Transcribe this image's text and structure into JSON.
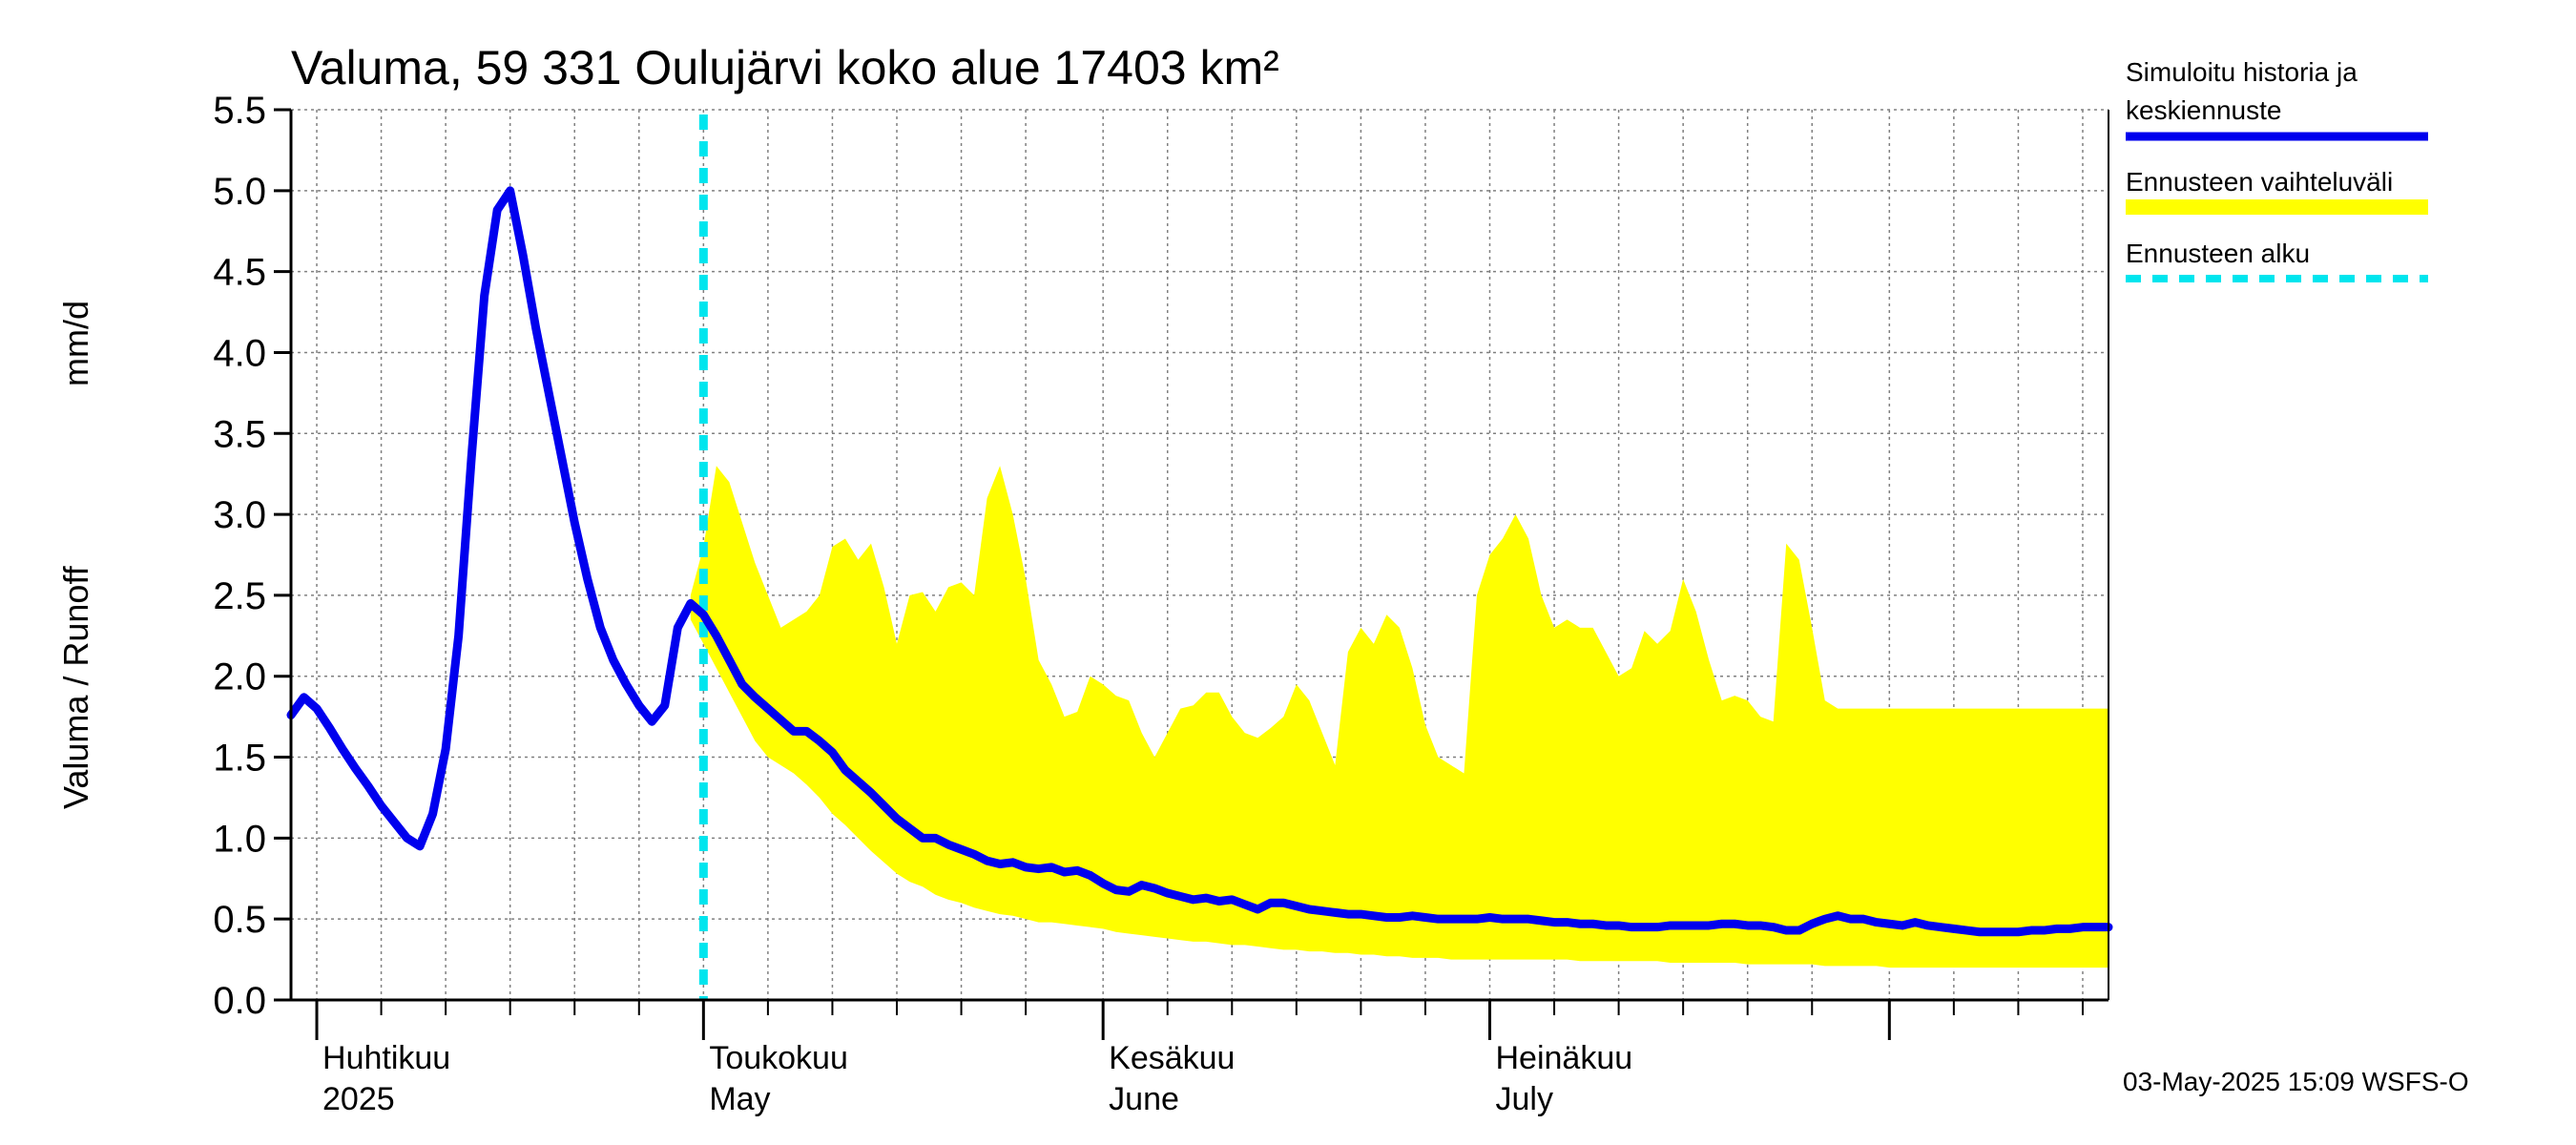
{
  "chart_data": {
    "type": "line",
    "title": "Valuma, 59 331 Oulujärvi koko alue 17403 km²",
    "ylabel_left": "Valuma / Runoff",
    "ylabel_unit": "mm/d",
    "ylim": [
      0.0,
      5.5
    ],
    "yticks": [
      "0.0",
      "0.5",
      "1.0",
      "1.5",
      "2.0",
      "2.5",
      "3.0",
      "3.5",
      "4.0",
      "4.5",
      "5.0",
      "5.5"
    ],
    "x_range_days": [
      0,
      141
    ],
    "month_labels": [
      {
        "day": 2,
        "fi": "Huhtikuu",
        "en": "2025"
      },
      {
        "day": 32,
        "fi": "Toukokuu",
        "en": "May"
      },
      {
        "day": 63,
        "fi": "Kesäkuu",
        "en": "June"
      },
      {
        "day": 93,
        "fi": "Heinäkuu",
        "en": "July"
      }
    ],
    "major_ticks_days": [
      2,
      32,
      63,
      93,
      124
    ],
    "minor_ticks_days": [
      7,
      12,
      17,
      22,
      27,
      37,
      42,
      47,
      52,
      57,
      68,
      73,
      78,
      83,
      88,
      98,
      103,
      108,
      113,
      118,
      129,
      134,
      139
    ],
    "forecast_start_day": 32,
    "legend": [
      {
        "label_line1": "Simuloitu historia ja",
        "label_line2": "keskiennuste",
        "color": "#0000ee",
        "style": "solid"
      },
      {
        "label_line1": "Ennusteen vaihteluväli",
        "label_line2": "",
        "color": "#ffff00",
        "style": "band"
      },
      {
        "label_line1": "Ennusteen alku",
        "label_line2": "",
        "color": "#00e5ee",
        "style": "dashed"
      }
    ],
    "footer": "03-May-2025 15:09 WSFS-O",
    "colors": {
      "series": "#0000ee",
      "band": "#ffff00",
      "forecast_line": "#00e5ee",
      "grid": "#808080"
    },
    "series": [
      {
        "name": "Simuloitu historia ja keskiennuste",
        "x": [
          0,
          1,
          2,
          3,
          4,
          5,
          6,
          7,
          8,
          9,
          10,
          11,
          12,
          13,
          14,
          15,
          16,
          17,
          18,
          19,
          20,
          21,
          22,
          23,
          24,
          25,
          26,
          27,
          28,
          29,
          30,
          31,
          32,
          33,
          34,
          35,
          36,
          37,
          38,
          39,
          40,
          41,
          42,
          43,
          44,
          45,
          46,
          47,
          48,
          49,
          50,
          51,
          52,
          53,
          54,
          55,
          56,
          57,
          58,
          59,
          60,
          61,
          62,
          63,
          64,
          65,
          66,
          67,
          68,
          69,
          70,
          71,
          72,
          73,
          74,
          75,
          76,
          77,
          78,
          79,
          80,
          81,
          82,
          83,
          84,
          85,
          86,
          87,
          88,
          89,
          90,
          91,
          92,
          93,
          94,
          95,
          96,
          97,
          98,
          99,
          100,
          101,
          102,
          103,
          104,
          105,
          106,
          107,
          108,
          109,
          110,
          111,
          112,
          113,
          114,
          115,
          116,
          117,
          118,
          119,
          120,
          121,
          122,
          123,
          124,
          125,
          126,
          127,
          128,
          129,
          130,
          131,
          132,
          133,
          134,
          135,
          136,
          137,
          138,
          139,
          140,
          141
        ],
        "values": [
          1.76,
          1.87,
          1.8,
          1.68,
          1.55,
          1.43,
          1.32,
          1.2,
          1.1,
          1.0,
          0.95,
          1.15,
          1.55,
          2.25,
          3.35,
          4.35,
          4.88,
          5.0,
          4.6,
          4.15,
          3.75,
          3.35,
          2.95,
          2.6,
          2.3,
          2.1,
          1.95,
          1.82,
          1.72,
          1.82,
          2.3,
          2.45,
          2.38,
          2.25,
          2.1,
          1.95,
          1.87,
          1.8,
          1.73,
          1.66,
          1.66,
          1.6,
          1.53,
          1.42,
          1.35,
          1.28,
          1.2,
          1.12,
          1.06,
          1.0,
          1.0,
          0.96,
          0.93,
          0.9,
          0.86,
          0.84,
          0.85,
          0.82,
          0.81,
          0.82,
          0.79,
          0.8,
          0.77,
          0.72,
          0.68,
          0.67,
          0.71,
          0.69,
          0.66,
          0.64,
          0.62,
          0.63,
          0.61,
          0.62,
          0.59,
          0.56,
          0.6,
          0.6,
          0.58,
          0.56,
          0.55,
          0.54,
          0.53,
          0.53,
          0.52,
          0.51,
          0.51,
          0.52,
          0.51,
          0.5,
          0.5,
          0.5,
          0.5,
          0.51,
          0.5,
          0.5,
          0.5,
          0.49,
          0.48,
          0.48,
          0.47,
          0.47,
          0.46,
          0.46,
          0.45,
          0.45,
          0.45,
          0.46,
          0.46,
          0.46,
          0.46,
          0.47,
          0.47,
          0.46,
          0.46,
          0.45,
          0.43,
          0.43,
          0.47,
          0.5,
          0.52,
          0.5,
          0.5,
          0.48,
          0.47,
          0.46,
          0.48,
          0.46,
          0.45,
          0.44,
          0.43,
          0.42,
          0.42,
          0.42,
          0.42,
          0.43,
          0.43,
          0.44,
          0.44,
          0.45,
          0.45,
          0.45
        ]
      }
    ],
    "band": {
      "name": "Ennusteen vaihteluväli",
      "x": [
        31,
        32,
        33,
        34,
        35,
        36,
        37,
        38,
        39,
        40,
        41,
        42,
        43,
        44,
        45,
        46,
        47,
        48,
        49,
        50,
        51,
        52,
        53,
        54,
        55,
        56,
        57,
        58,
        59,
        60,
        61,
        62,
        63,
        64,
        65,
        66,
        67,
        68,
        69,
        70,
        71,
        72,
        73,
        74,
        75,
        76,
        77,
        78,
        79,
        80,
        81,
        82,
        83,
        84,
        85,
        86,
        87,
        88,
        89,
        90,
        91,
        92,
        93,
        94,
        95,
        96,
        97,
        98,
        99,
        100,
        101,
        102,
        103,
        104,
        105,
        106,
        107,
        108,
        109,
        110,
        111,
        112,
        113,
        114,
        115,
        116,
        117,
        118,
        119,
        120,
        121,
        122,
        123,
        124,
        125,
        126,
        127,
        128,
        129,
        130,
        131,
        132,
        133,
        134,
        135,
        136,
        137,
        138,
        139,
        140,
        141
      ],
      "upper": [
        2.5,
        2.8,
        3.3,
        3.2,
        2.95,
        2.7,
        2.5,
        2.3,
        2.35,
        2.4,
        2.5,
        2.8,
        2.85,
        2.72,
        2.82,
        2.55,
        2.2,
        2.5,
        2.52,
        2.4,
        2.55,
        2.58,
        2.5,
        3.1,
        3.3,
        3.0,
        2.6,
        2.1,
        1.95,
        1.75,
        1.78,
        2.0,
        1.95,
        1.88,
        1.85,
        1.65,
        1.5,
        1.65,
        1.8,
        1.82,
        1.9,
        1.9,
        1.75,
        1.65,
        1.62,
        1.68,
        1.75,
        1.95,
        1.85,
        1.65,
        1.45,
        2.15,
        2.3,
        2.2,
        2.38,
        2.3,
        2.05,
        1.7,
        1.5,
        1.45,
        1.4,
        2.5,
        2.75,
        2.85,
        3.0,
        2.85,
        2.5,
        2.3,
        2.35,
        2.3,
        2.3,
        2.15,
        2.0,
        2.05,
        2.28,
        2.2,
        2.28,
        2.6,
        2.4,
        2.1,
        1.85,
        1.88,
        1.85,
        1.75,
        1.72,
        2.82,
        2.72,
        2.3,
        1.85,
        1.8,
        1.8,
        1.8,
        1.8,
        1.8,
        1.8,
        1.8,
        1.8,
        1.8,
        1.8,
        1.8,
        1.8,
        1.8,
        1.8,
        1.8,
        1.8,
        1.8,
        1.8,
        1.8,
        1.8,
        1.8,
        1.8
      ],
      "lower": [
        2.35,
        2.2,
        2.05,
        1.9,
        1.75,
        1.6,
        1.5,
        1.45,
        1.4,
        1.33,
        1.25,
        1.15,
        1.08,
        1.0,
        0.92,
        0.85,
        0.78,
        0.73,
        0.7,
        0.65,
        0.62,
        0.6,
        0.57,
        0.55,
        0.53,
        0.52,
        0.5,
        0.48,
        0.48,
        0.47,
        0.46,
        0.45,
        0.44,
        0.42,
        0.41,
        0.4,
        0.39,
        0.38,
        0.37,
        0.36,
        0.36,
        0.35,
        0.34,
        0.34,
        0.33,
        0.32,
        0.31,
        0.31,
        0.3,
        0.3,
        0.29,
        0.29,
        0.28,
        0.28,
        0.27,
        0.27,
        0.26,
        0.26,
        0.26,
        0.25,
        0.25,
        0.25,
        0.25,
        0.25,
        0.25,
        0.25,
        0.25,
        0.25,
        0.25,
        0.24,
        0.24,
        0.24,
        0.24,
        0.24,
        0.24,
        0.24,
        0.23,
        0.23,
        0.23,
        0.23,
        0.23,
        0.23,
        0.22,
        0.22,
        0.22,
        0.22,
        0.22,
        0.22,
        0.21,
        0.21,
        0.21,
        0.21,
        0.21,
        0.2,
        0.2,
        0.2,
        0.2,
        0.2,
        0.2,
        0.2,
        0.2,
        0.2,
        0.2,
        0.2,
        0.2,
        0.2,
        0.2,
        0.2,
        0.2,
        0.2,
        0.2
      ]
    }
  }
}
